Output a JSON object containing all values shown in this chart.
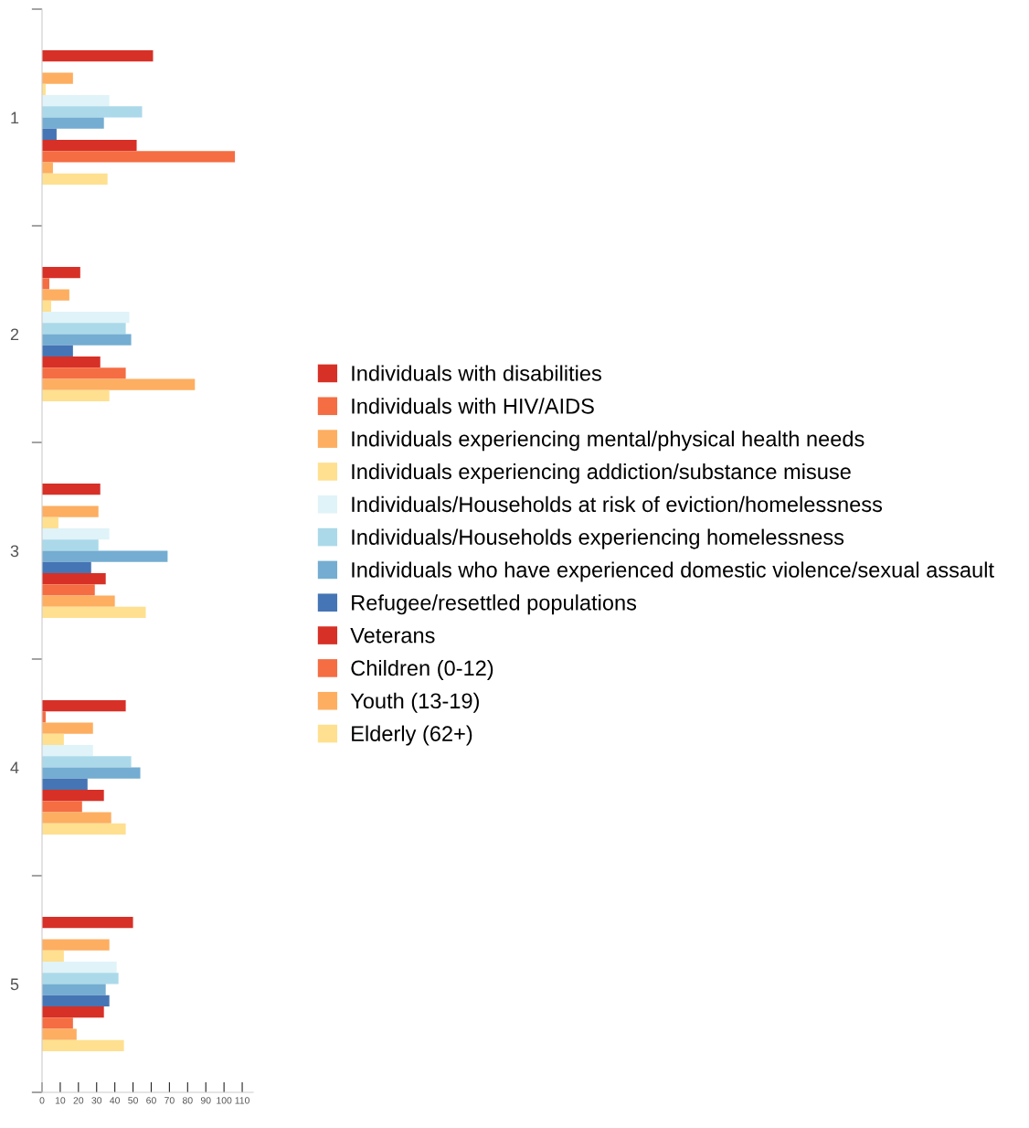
{
  "chart_data": {
    "type": "bar",
    "orientation": "horizontal",
    "categories": [
      "1",
      "2",
      "3",
      "4",
      "5"
    ],
    "series": [
      {
        "name": "Individuals with disabilities",
        "color": "#d73027",
        "values": [
          61,
          21,
          32,
          46,
          50
        ]
      },
      {
        "name": "Individuals with HIV/AIDS",
        "color": "#f46d43",
        "values": [
          0,
          4,
          0,
          2,
          0
        ]
      },
      {
        "name": "Individuals experiencing mental/physical health needs",
        "color": "#fdae61",
        "values": [
          17,
          15,
          31,
          28,
          37
        ]
      },
      {
        "name": "Individuals experiencing addiction/substance misuse",
        "color": "#fee090",
        "values": [
          2,
          5,
          9,
          12,
          12
        ]
      },
      {
        "name": "Individuals/Households at risk of eviction/homelessness",
        "color": "#e0f3f8",
        "values": [
          37,
          48,
          37,
          28,
          41
        ]
      },
      {
        "name": "Individuals/Households experiencing homelessness",
        "color": "#abd9e9",
        "values": [
          55,
          46,
          31,
          49,
          42
        ]
      },
      {
        "name": "Individuals who have experienced domestic violence/sexual assault",
        "color": "#74add1",
        "values": [
          34,
          49,
          69,
          54,
          35
        ]
      },
      {
        "name": "Refugee/resettled populations",
        "color": "#4575b4",
        "values": [
          8,
          17,
          27,
          25,
          37
        ]
      },
      {
        "name": "Veterans",
        "color": "#d73027",
        "values": [
          52,
          32,
          35,
          34,
          34
        ]
      },
      {
        "name": "Children (0-12)",
        "color": "#f46d43",
        "values": [
          106,
          46,
          29,
          22,
          17
        ]
      },
      {
        "name": "Youth (13-19)",
        "color": "#fdae61",
        "values": [
          6,
          84,
          40,
          38,
          19
        ]
      },
      {
        "name": "Elderly (62+)",
        "color": "#fee090",
        "values": [
          36,
          37,
          57,
          46,
          45
        ]
      }
    ],
    "xlim": [
      0,
      116
    ],
    "xticks": [
      0,
      10,
      20,
      30,
      40,
      50,
      60,
      70,
      80,
      90,
      100,
      110
    ],
    "legend": "right",
    "grid": false
  }
}
